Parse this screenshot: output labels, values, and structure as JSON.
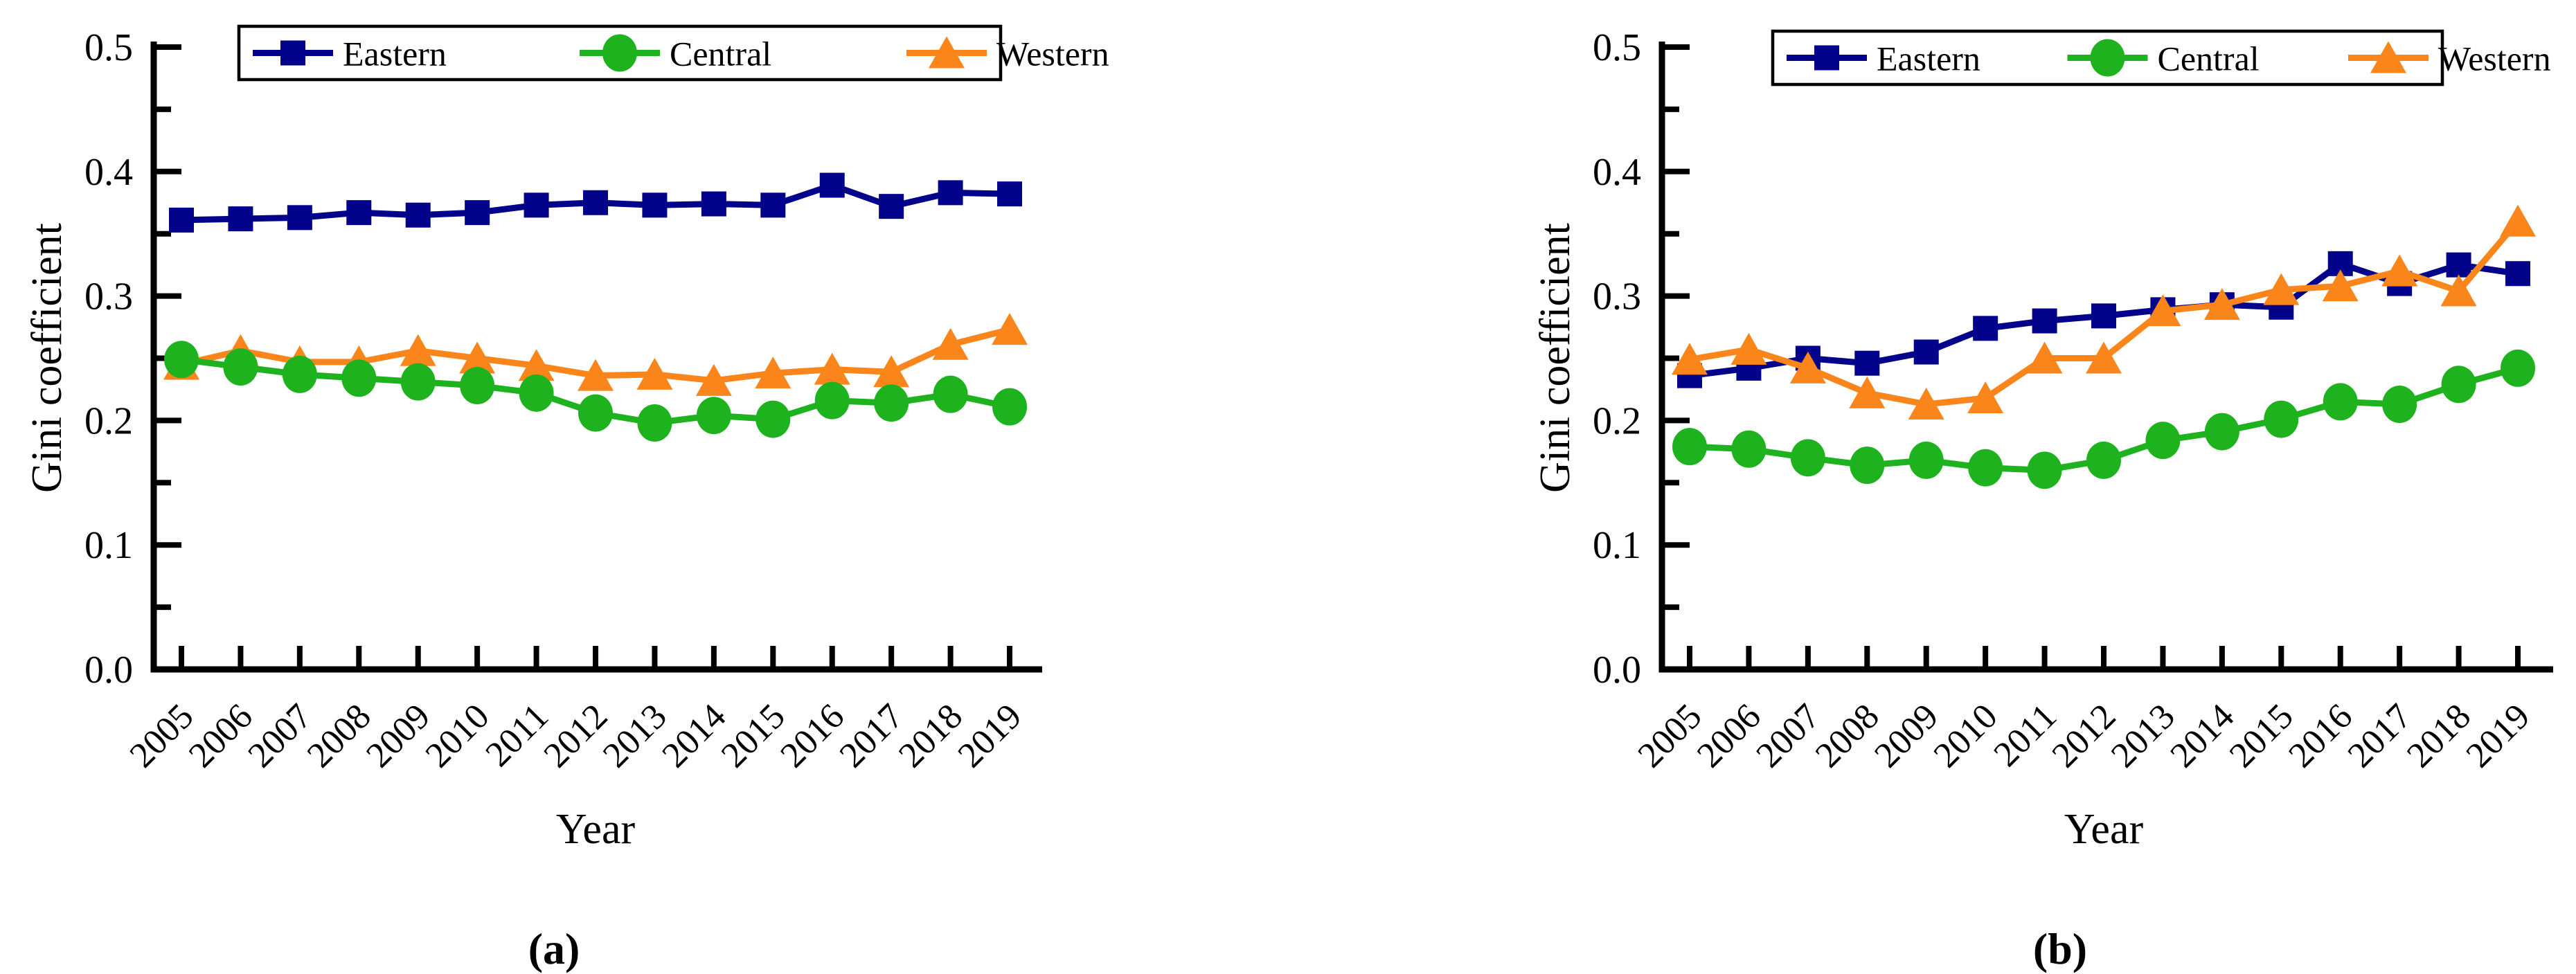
{
  "page": {
    "background": "#ffffff",
    "figure_type": "dual-panel line chart",
    "captions": {
      "a": "(a)",
      "b": "(b)"
    }
  },
  "colors": {
    "eastern": "#02028B",
    "central": "#1FB21F",
    "western": "#FA861B",
    "axis": "#000000",
    "legend_border": "#000000"
  },
  "chart_data": [
    {
      "id": "a",
      "type": "line",
      "caption": "(a)",
      "xlabel": "Year",
      "ylabel": "Gini coefficient",
      "ylim": [
        0.0,
        0.5
      ],
      "y_major_step": 0.1,
      "y_minor_step": 0.05,
      "y_tick_labels": [
        "0.0",
        "0.1",
        "0.2",
        "0.3",
        "0.4",
        "0.5"
      ],
      "grid": false,
      "legend_position": "top",
      "categories": [
        "2005",
        "2006",
        "2007",
        "2008",
        "2009",
        "2010",
        "2011",
        "2012",
        "2013",
        "2014",
        "2015",
        "2016",
        "2017",
        "2018",
        "2019"
      ],
      "series": [
        {
          "name": "Eastern",
          "marker": "square",
          "color": "#02028B",
          "values": [
            0.361,
            0.362,
            0.363,
            0.367,
            0.365,
            0.367,
            0.373,
            0.375,
            0.373,
            0.374,
            0.373,
            0.389,
            0.372,
            0.383,
            0.382
          ]
        },
        {
          "name": "Central",
          "marker": "circle",
          "color": "#1FB21F",
          "values": [
            0.249,
            0.243,
            0.237,
            0.234,
            0.231,
            0.228,
            0.222,
            0.206,
            0.198,
            0.204,
            0.201,
            0.216,
            0.214,
            0.221,
            0.211
          ]
        },
        {
          "name": "Western",
          "marker": "triangle",
          "color": "#FA861B",
          "values": [
            0.245,
            0.256,
            0.247,
            0.247,
            0.256,
            0.25,
            0.244,
            0.236,
            0.237,
            0.232,
            0.238,
            0.241,
            0.239,
            0.261,
            0.273
          ]
        }
      ]
    },
    {
      "id": "b",
      "type": "line",
      "caption": "(b)",
      "xlabel": "Year",
      "ylabel": "Gini coefficient",
      "ylim": [
        0.0,
        0.5
      ],
      "y_major_step": 0.1,
      "y_minor_step": 0.05,
      "y_tick_labels": [
        "0.0",
        "0.1",
        "0.2",
        "0.3",
        "0.4",
        "0.5"
      ],
      "grid": false,
      "legend_position": "top",
      "categories": [
        "2005",
        "2006",
        "2007",
        "2008",
        "2009",
        "2010",
        "2011",
        "2012",
        "2013",
        "2014",
        "2015",
        "2016",
        "2017",
        "2018",
        "2019"
      ],
      "series": [
        {
          "name": "Eastern",
          "marker": "square",
          "color": "#02028B",
          "values": [
            0.236,
            0.242,
            0.25,
            0.246,
            0.255,
            0.274,
            0.28,
            0.284,
            0.289,
            0.293,
            0.291,
            0.326,
            0.31,
            0.325,
            0.318
          ]
        },
        {
          "name": "Central",
          "marker": "circle",
          "color": "#1FB21F",
          "values": [
            0.179,
            0.177,
            0.17,
            0.164,
            0.168,
            0.162,
            0.16,
            0.168,
            0.184,
            0.191,
            0.201,
            0.215,
            0.213,
            0.229,
            0.242
          ]
        },
        {
          "name": "Western",
          "marker": "triangle",
          "color": "#FA861B",
          "values": [
            0.249,
            0.257,
            0.242,
            0.222,
            0.213,
            0.218,
            0.25,
            0.25,
            0.288,
            0.293,
            0.305,
            0.308,
            0.32,
            0.304,
            0.36
          ]
        }
      ]
    }
  ]
}
